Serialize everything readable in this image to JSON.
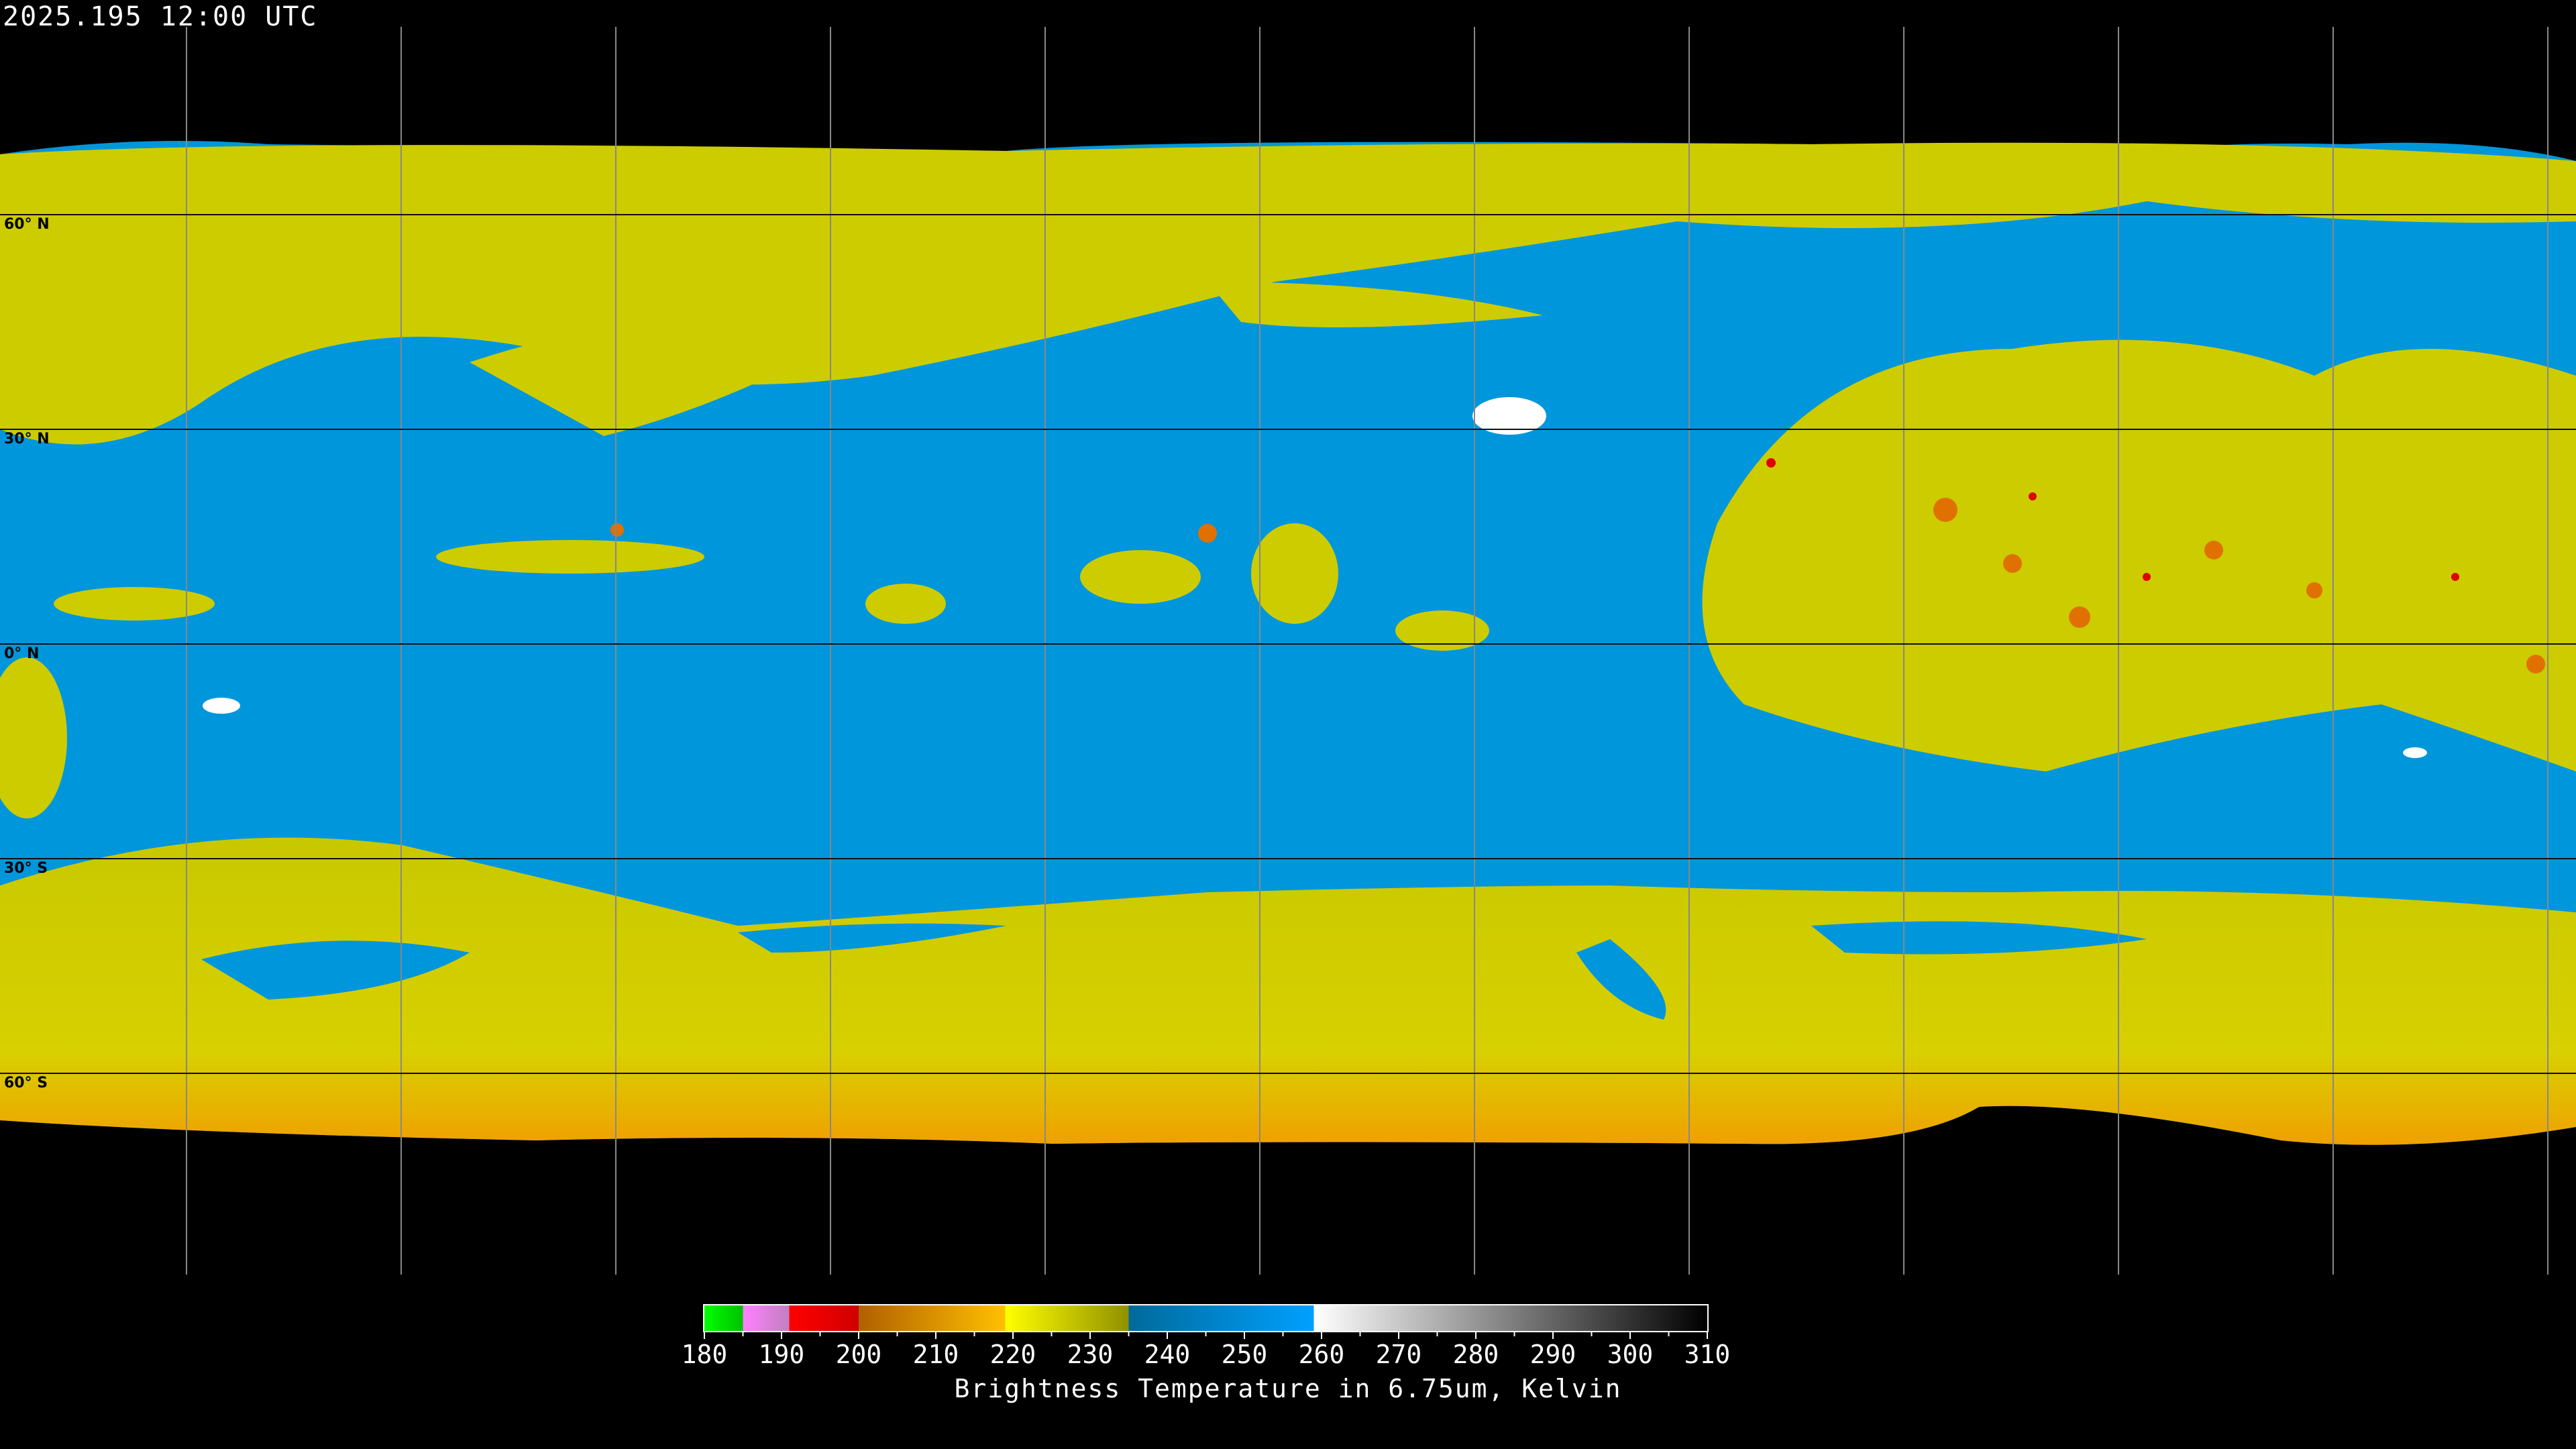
{
  "title": "2025.195 12:00 UTC",
  "latitude_labels": [
    "60° N",
    "30° N",
    "0° N",
    "30° S",
    "60° S"
  ],
  "colorbar": {
    "title": "Brightness Temperature in 6.75um, Kelvin",
    "range": [
      180,
      310
    ],
    "ticks": [
      "180",
      "190",
      "200",
      "210",
      "220",
      "230",
      "240",
      "250",
      "260",
      "270",
      "280",
      "290",
      "300",
      "310"
    ],
    "segments": [
      {
        "from": 180,
        "to": 185,
        "start": "#00ff00",
        "end": "#00c000"
      },
      {
        "from": 185,
        "to": 191,
        "start": "#ff80ff",
        "end": "#c080c0"
      },
      {
        "from": 191,
        "to": 200,
        "start": "#ff0000",
        "end": "#d00000"
      },
      {
        "from": 200,
        "to": 219,
        "start": "#b06000",
        "end": "#ffc000"
      },
      {
        "from": 219,
        "to": 235,
        "start": "#ffff00",
        "end": "#909000"
      },
      {
        "from": 235,
        "to": 259,
        "start": "#006a9a",
        "end": "#00a0ff"
      },
      {
        "from": 259,
        "to": 310,
        "start": "#ffffff",
        "end": "#000000"
      }
    ]
  },
  "colors": {
    "moist": "#0096dc",
    "dry_upper": "#d0d000",
    "cold": "#f0a000",
    "very_cold": "#e00000",
    "background": "#000000"
  }
}
